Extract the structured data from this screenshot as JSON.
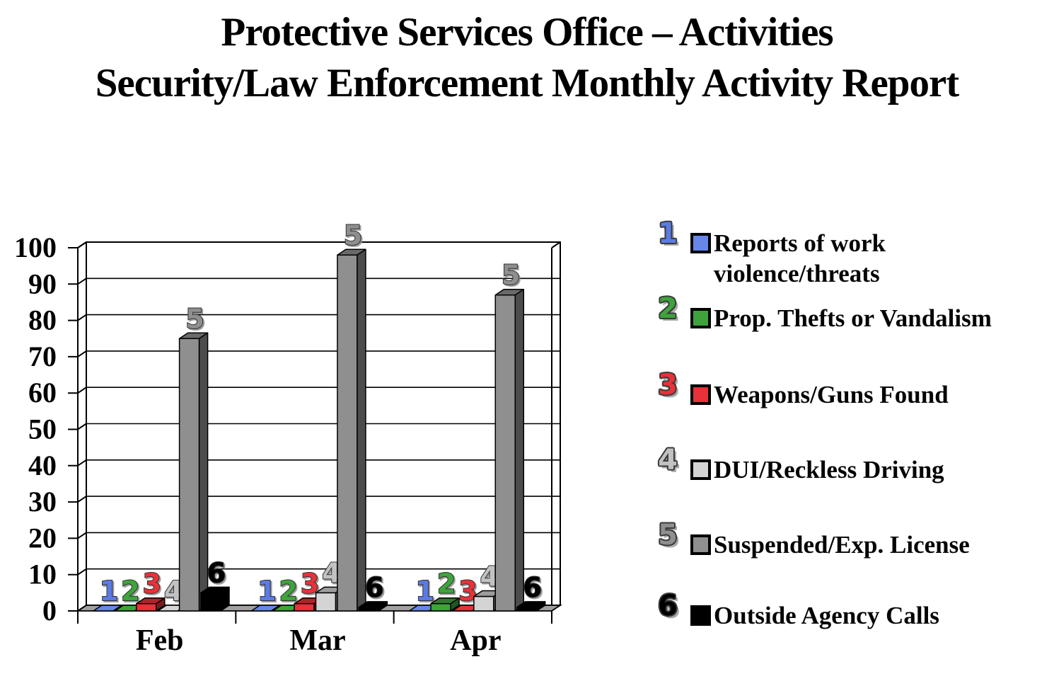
{
  "title": {
    "line1": "Protective Services Office – Activities",
    "line2": "Security/Law Enforcement Monthly Activity Report"
  },
  "chart_data": {
    "type": "bar",
    "subtype": "3d-column",
    "title": "Protective Services Office – Activities Security/Law Enforcement Monthly Activity Report",
    "xlabel": "",
    "ylabel": "",
    "categories": [
      "Feb",
      "Mar",
      "Apr"
    ],
    "series": [
      {
        "num": "1",
        "name": "Reports of work violence/threats",
        "color": "#6687E8",
        "label_color": "#5B7BE4",
        "values": [
          0,
          0,
          0
        ]
      },
      {
        "num": "2",
        "name": "Prop. Thefts or Vandalism",
        "color": "#3EA33B",
        "label_color": "#3EA33B",
        "values": [
          0,
          0,
          2
        ]
      },
      {
        "num": "3",
        "name": "Weapons/Guns Found",
        "color": "#E63238",
        "label_color": "#E63238",
        "values": [
          2,
          2,
          0
        ]
      },
      {
        "num": "4",
        "name": "DUI/Reckless Driving",
        "color": "#D4D4D4",
        "label_color": "#C2C2C2",
        "values": [
          0,
          5,
          4
        ]
      },
      {
        "num": "5",
        "name": "Suspended/Exp. License",
        "color": "#8F8F8F",
        "label_color": "#8F8F8F",
        "values": [
          75,
          98,
          87
        ]
      },
      {
        "num": "6",
        "name": "Outside Agency Calls",
        "color": "#000000",
        "label_color": "#000000",
        "values": [
          5,
          1,
          1
        ]
      }
    ],
    "ylim": [
      0,
      100
    ],
    "ytick_step": 10,
    "yticklabels": [
      "0",
      "10",
      "20",
      "30",
      "40",
      "50",
      "60",
      "70",
      "80",
      "90",
      "100"
    ],
    "grid": true,
    "legend_position": "right",
    "wall_color": "#FFFFFF",
    "floor_color": "#A0A0A0",
    "bar_labels_are_series_numbers": true
  }
}
